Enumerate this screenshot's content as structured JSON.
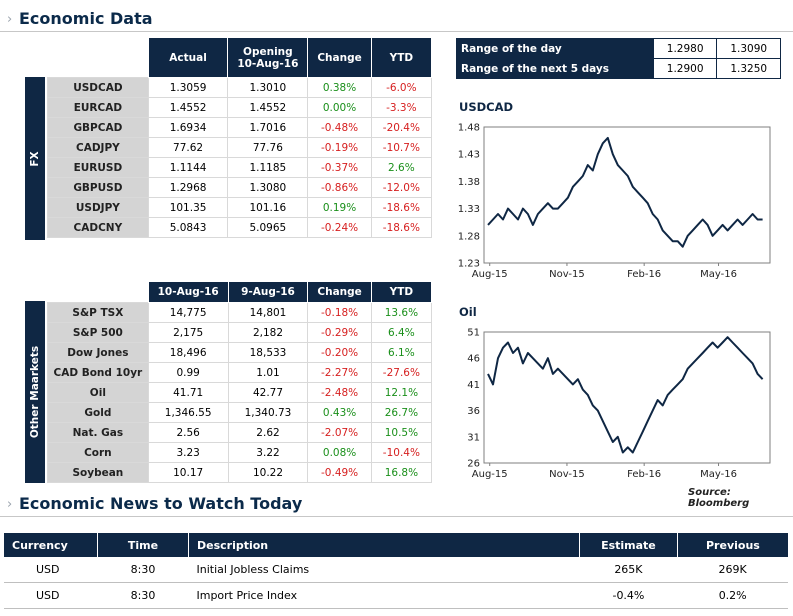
{
  "economic_data": {
    "title": "Economic Data"
  },
  "fx": {
    "side_label": "FX",
    "headers": [
      "Actual",
      "Opening 10-Aug-16",
      "Change",
      "YTD"
    ],
    "header_opening_line1": "Opening",
    "header_opening_line2": "10-Aug-16",
    "rows": [
      {
        "name": "USDCAD",
        "actual": "1.3059",
        "opening": "1.3010",
        "change": "0.38%",
        "ytd": "-6.0%"
      },
      {
        "name": "EURCAD",
        "actual": "1.4552",
        "opening": "1.4552",
        "change": "0.00%",
        "ytd": "-3.3%"
      },
      {
        "name": "GBPCAD",
        "actual": "1.6934",
        "opening": "1.7016",
        "change": "-0.48%",
        "ytd": "-20.4%"
      },
      {
        "name": "CADJPY",
        "actual": "77.62",
        "opening": "77.76",
        "change": "-0.19%",
        "ytd": "-10.7%"
      },
      {
        "name": "EURUSD",
        "actual": "1.1144",
        "opening": "1.1185",
        "change": "-0.37%",
        "ytd": "2.6%"
      },
      {
        "name": "GBPUSD",
        "actual": "1.2968",
        "opening": "1.3080",
        "change": "-0.86%",
        "ytd": "-12.0%"
      },
      {
        "name": "USDJPY",
        "actual": "101.35",
        "opening": "101.16",
        "change": "0.19%",
        "ytd": "-18.6%"
      },
      {
        "name": "CADCNY",
        "actual": "5.0843",
        "opening": "5.0965",
        "change": "-0.24%",
        "ytd": "-18.6%"
      }
    ]
  },
  "markets": {
    "side_label": "Other Maarkets",
    "headers": [
      "10-Aug-16",
      "9-Aug-16",
      "Change",
      "YTD"
    ],
    "rows": [
      {
        "name": "S&P TSX",
        "a": "14,775",
        "b": "14,801",
        "change": "-0.18%",
        "ytd": "13.6%"
      },
      {
        "name": "S&P 500",
        "a": "2,175",
        "b": "2,182",
        "change": "-0.29%",
        "ytd": "6.4%"
      },
      {
        "name": "Dow Jones",
        "a": "18,496",
        "b": "18,533",
        "change": "-0.20%",
        "ytd": "6.1%"
      },
      {
        "name": "CAD Bond 10yr",
        "a": "0.99",
        "b": "1.01",
        "change": "-2.27%",
        "ytd": "-27.6%"
      },
      {
        "name": "Oil",
        "a": "41.71",
        "b": "42.77",
        "change": "-2.48%",
        "ytd": "12.1%"
      },
      {
        "name": "Gold",
        "a": "1,346.55",
        "b": "1,340.73",
        "change": "0.43%",
        "ytd": "26.7%"
      },
      {
        "name": "Nat. Gas",
        "a": "2.56",
        "b": "2.62",
        "change": "-2.07%",
        "ytd": "10.5%"
      },
      {
        "name": "Corn",
        "a": "3.23",
        "b": "3.22",
        "change": "0.08%",
        "ytd": "-10.4%"
      },
      {
        "name": "Soybean",
        "a": "10.17",
        "b": "10.22",
        "change": "-0.49%",
        "ytd": "16.8%"
      }
    ]
  },
  "ranges": [
    {
      "label": "Range of the day",
      "low": "1.2980",
      "high": "1.3090"
    },
    {
      "label": "Range of the next 5 days",
      "low": "1.2900",
      "high": "1.3250"
    }
  ],
  "chart_data": [
    {
      "type": "line",
      "title": "USDCAD",
      "x_labels": [
        "Aug-15",
        "Nov-15",
        "Feb-16",
        "May-16"
      ],
      "y_ticks": [
        "1.48",
        "1.43",
        "1.38",
        "1.33",
        "1.28",
        "1.23"
      ],
      "ylim": [
        1.23,
        1.48
      ],
      "series": [
        {
          "values": [
            1.3,
            1.31,
            1.32,
            1.31,
            1.33,
            1.32,
            1.31,
            1.33,
            1.32,
            1.3,
            1.32,
            1.33,
            1.34,
            1.33,
            1.33,
            1.34,
            1.35,
            1.37,
            1.38,
            1.39,
            1.41,
            1.4,
            1.43,
            1.45,
            1.46,
            1.43,
            1.41,
            1.4,
            1.39,
            1.37,
            1.36,
            1.35,
            1.34,
            1.32,
            1.31,
            1.29,
            1.28,
            1.27,
            1.27,
            1.26,
            1.28,
            1.29,
            1.3,
            1.31,
            1.3,
            1.28,
            1.29,
            1.3,
            1.29,
            1.3,
            1.31,
            1.3,
            1.31,
            1.32,
            1.31,
            1.31
          ]
        }
      ]
    },
    {
      "type": "line",
      "title": "Oil",
      "x_labels": [
        "Aug-15",
        "Nov-15",
        "Feb-16",
        "May-16"
      ],
      "y_ticks": [
        "51",
        "46",
        "41",
        "36",
        "31",
        "26"
      ],
      "ylim": [
        26,
        51
      ],
      "series": [
        {
          "values": [
            43,
            41,
            46,
            48,
            49,
            47,
            48,
            45,
            47,
            46,
            45,
            44,
            46,
            43,
            44,
            43,
            42,
            41,
            42,
            40,
            39,
            37,
            36,
            34,
            32,
            30,
            31,
            28,
            29,
            28,
            30,
            32,
            34,
            36,
            38,
            37,
            39,
            40,
            41,
            42,
            44,
            45,
            46,
            47,
            48,
            49,
            48,
            49,
            50,
            49,
            48,
            47,
            46,
            45,
            43,
            42
          ]
        }
      ]
    }
  ],
  "chart_source": "Source: Bloomberg",
  "news": {
    "title": "Economic News to Watch Today",
    "headers": [
      "Currency",
      "Time",
      "Description",
      "Estimate",
      "Previous"
    ],
    "rows": [
      {
        "currency": "USD",
        "time": "8:30",
        "description": "Initial Jobless Claims",
        "estimate": "265K",
        "previous": "269K"
      },
      {
        "currency": "USD",
        "time": "8:30",
        "description": "Import Price Index",
        "estimate": "-0.4%",
        "previous": "0.2%"
      }
    ]
  }
}
